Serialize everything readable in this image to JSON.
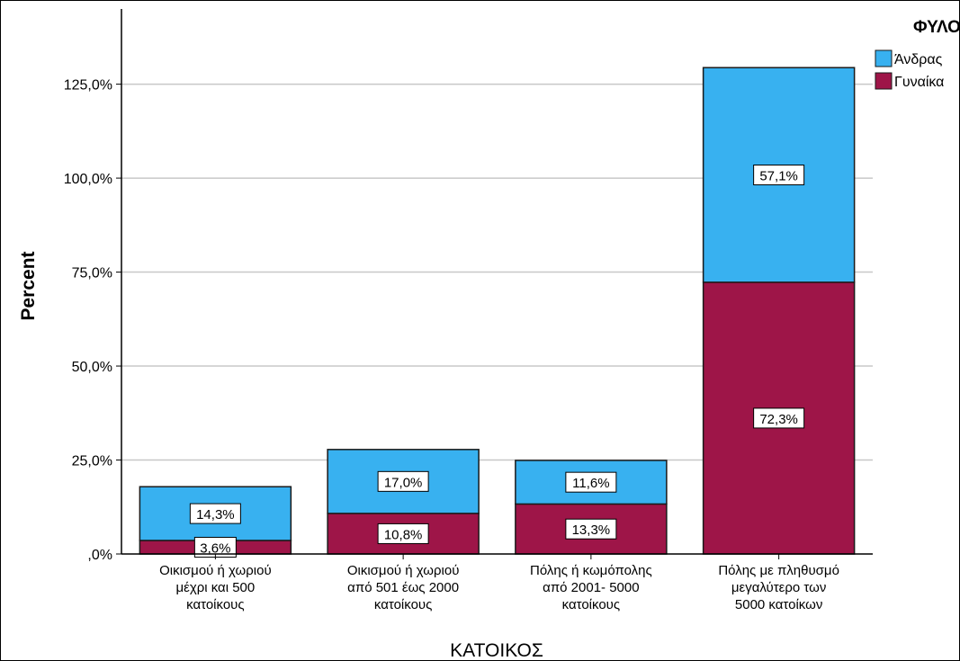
{
  "chart_data": {
    "type": "bar",
    "stacked": true,
    "title": "",
    "xlabel": "ΚΑΤΟΙΚΟΣ",
    "ylabel": "Percent",
    "ylim": [
      0,
      145
    ],
    "yticks": [
      0,
      25,
      50,
      75,
      100,
      125
    ],
    "ytick_labels": [
      ",0%",
      "25,0%",
      "50,0%",
      "75,0%",
      "100,0%",
      "125,0%"
    ],
    "grid": true,
    "legend_title": "ΦΥΛΟ",
    "legend_position": "top-right",
    "categories": [
      [
        "Οικισμού ή χωριού",
        "μέχρι και 500",
        "κατοίκους"
      ],
      [
        "Οικισμού ή χωριού",
        "από 501 έως 2000",
        "κατοίκους"
      ],
      [
        "Πόλης ή κωμόπολης",
        "από 2001- 5000",
        "κατοίκους"
      ],
      [
        "Πόλης με πληθυσμό",
        "μεγαλύτερο των",
        "5000 κατοίκων"
      ]
    ],
    "series": [
      {
        "name": "Γυναίκα",
        "color": "#9e1548",
        "values": [
          3.6,
          10.8,
          13.3,
          72.3
        ],
        "labels": [
          "3,6%",
          "10,8%",
          "13,3%",
          "72,3%"
        ]
      },
      {
        "name": "Άνδρας",
        "color": "#38b1f0",
        "values": [
          14.3,
          17.0,
          11.6,
          57.1
        ],
        "labels": [
          "14,3%",
          "17,0%",
          "11,6%",
          "57,1%"
        ]
      }
    ],
    "legend_order": [
      "Άνδρας",
      "Γυναίκα"
    ]
  }
}
